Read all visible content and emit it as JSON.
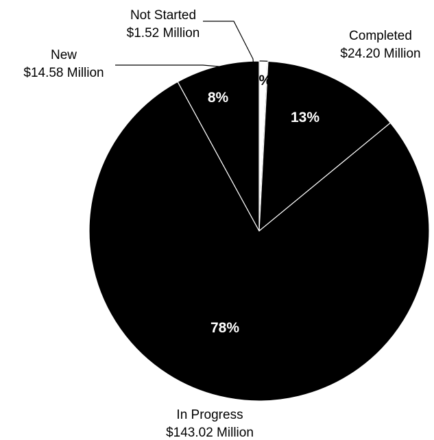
{
  "chart_data": {
    "type": "pie",
    "categories": [
      "Not Started",
      "Completed",
      "In Progress",
      "New"
    ],
    "values": [
      1.52,
      24.2,
      143.02,
      14.58
    ],
    "value_labels": [
      "$1.52 Million",
      "$24.20 Million",
      "$143.02 Million",
      "$14.58 Million"
    ],
    "percent_labels": [
      "1%",
      "13%",
      "78%",
      "8%"
    ],
    "colors": [
      "#ffffff",
      "#000000",
      "#000000",
      "#000000"
    ],
    "percent_label_colors": [
      "#000000",
      "#ffffff",
      "#ffffff",
      "#ffffff"
    ],
    "start_angle_deg": 0,
    "direction": "clockwise"
  }
}
